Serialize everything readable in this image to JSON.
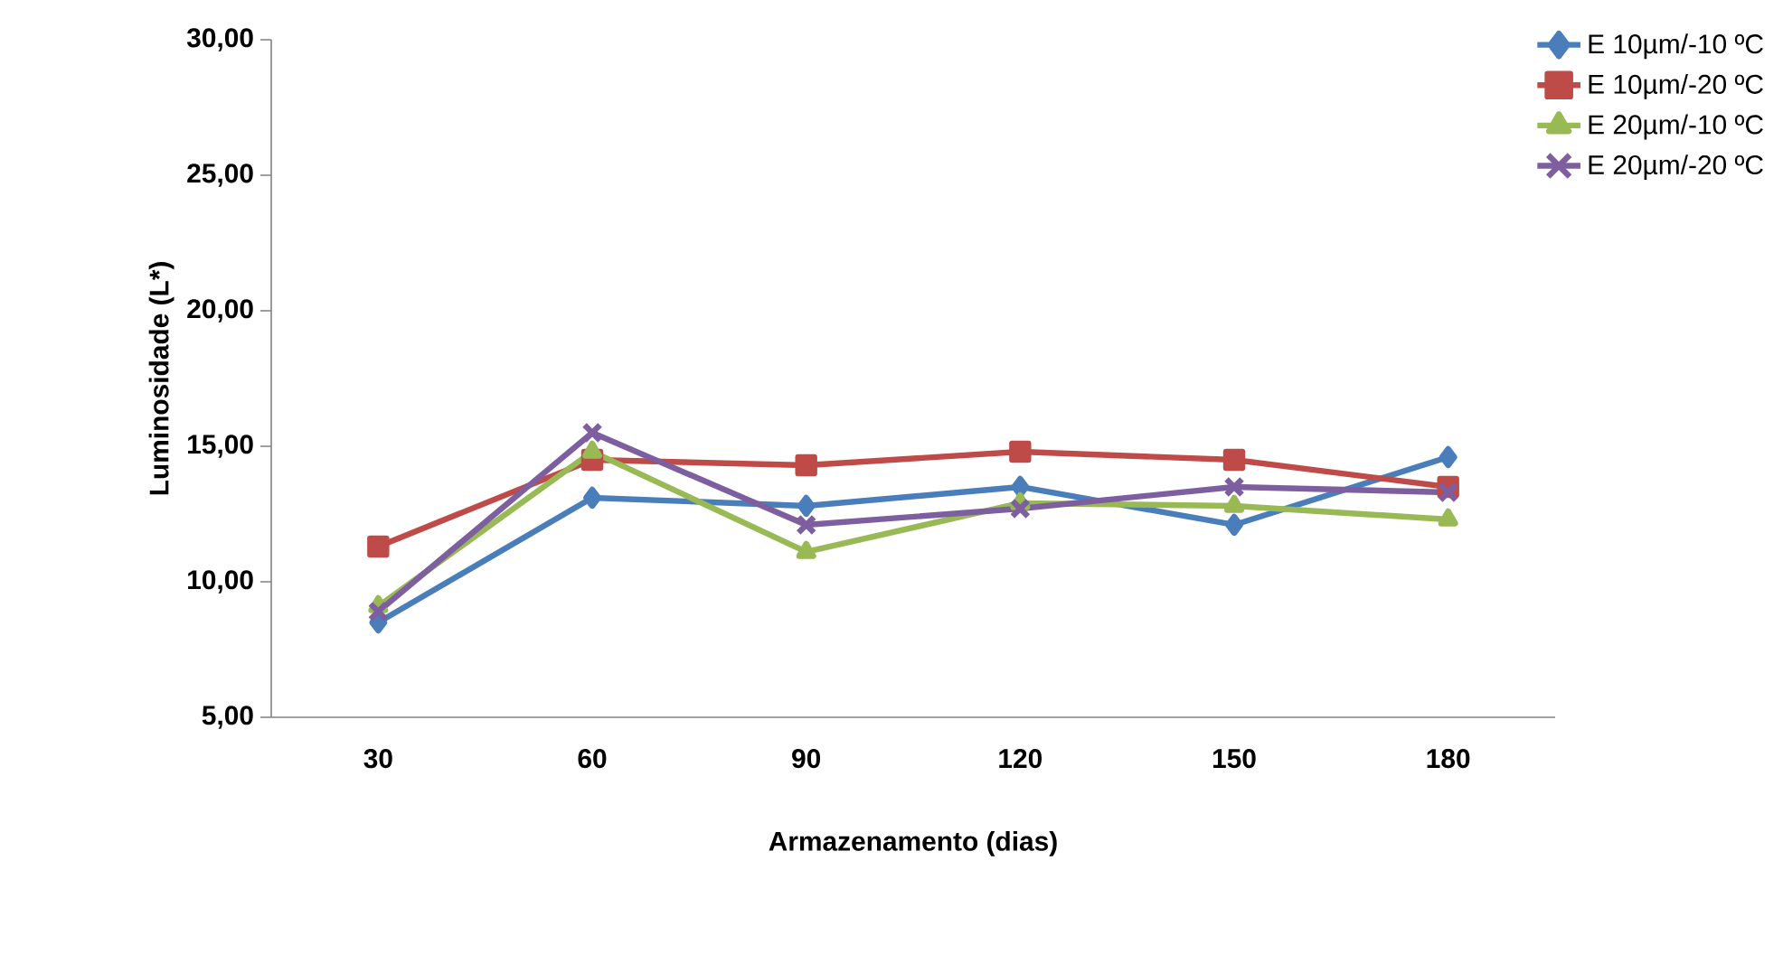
{
  "chart_data": {
    "type": "line",
    "xlabel": "Armazenamento (dias)",
    "ylabel": "Luminosidade (L*)",
    "categories": [
      "30",
      "60",
      "90",
      "120",
      "150",
      "180"
    ],
    "ylim": [
      5,
      30
    ],
    "yticks": [
      {
        "value": 5,
        "label": "5,00"
      },
      {
        "value": 10,
        "label": "10,00"
      },
      {
        "value": 15,
        "label": "15,00"
      },
      {
        "value": 20,
        "label": "20,00"
      },
      {
        "value": 25,
        "label": "25,00"
      },
      {
        "value": 30,
        "label": "30,00"
      }
    ],
    "grid": false,
    "legend": "top right",
    "line_style": "solid",
    "series": [
      {
        "name": "E 10µm/-10 ºC",
        "color": "#4a7ebb",
        "marker": "diamond",
        "values": [
          8.5,
          13.1,
          12.8,
          13.5,
          12.1,
          14.6
        ]
      },
      {
        "name": "E 10µm/-20 ºC",
        "color": "#be4b48",
        "marker": "square",
        "values": [
          11.3,
          14.5,
          14.3,
          14.8,
          14.5,
          13.5
        ]
      },
      {
        "name": "E 20µm/-10 ºC",
        "color": "#98b954",
        "marker": "triangle",
        "values": [
          9.1,
          14.8,
          11.1,
          12.9,
          12.8,
          12.3
        ]
      },
      {
        "name": "E 20µm/-20 ºC",
        "color": "#7d5fa0",
        "marker": "cross",
        "values": [
          8.9,
          15.5,
          12.1,
          12.7,
          13.5,
          13.3
        ]
      }
    ]
  }
}
